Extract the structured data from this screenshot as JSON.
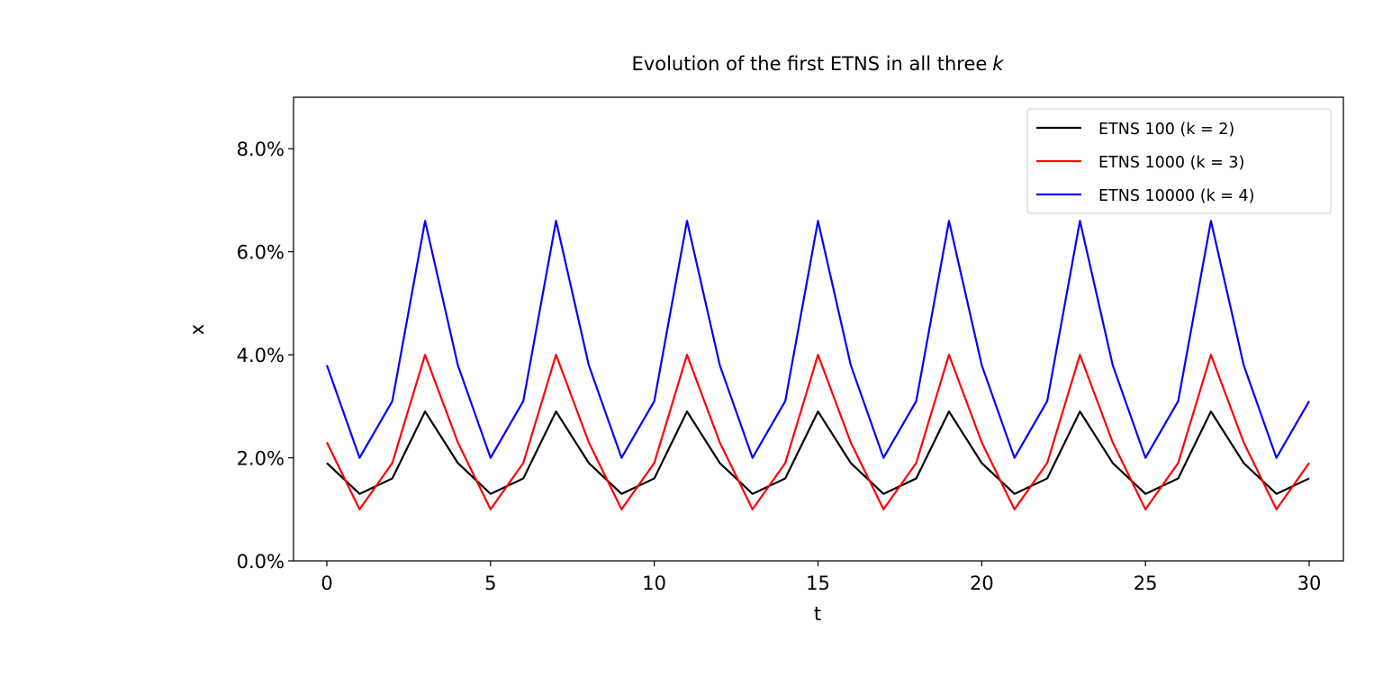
{
  "chart_data": {
    "type": "line",
    "title": "Evolution of the first ETNS in all three",
    "title_italic_suffix": "k",
    "xlabel": "t",
    "ylabel": "x",
    "xlim": [
      -1,
      31
    ],
    "ylim": [
      0,
      0.09
    ],
    "xticks": [
      0,
      5,
      10,
      15,
      20,
      25,
      30
    ],
    "xtick_labels": [
      "0",
      "5",
      "10",
      "15",
      "20",
      "25",
      "30"
    ],
    "yticks": [
      0,
      0.02,
      0.04,
      0.06,
      0.08
    ],
    "ytick_labels": [
      "0.0%",
      "2.0%",
      "4.0%",
      "6.0%",
      "8.0%"
    ],
    "grid": false,
    "legend_position": "top-right",
    "x": [
      0,
      1,
      2,
      3,
      4,
      5,
      6,
      7,
      8,
      9,
      10,
      11,
      12,
      13,
      14,
      15,
      16,
      17,
      18,
      19,
      20,
      21,
      22,
      23,
      24,
      25,
      26,
      27,
      28,
      29,
      30
    ],
    "series": [
      {
        "name": "ETNS 100 (k = 2)",
        "color": "#000000",
        "values": [
          0.019,
          0.013,
          0.016,
          0.029,
          0.019,
          0.013,
          0.016,
          0.029,
          0.019,
          0.013,
          0.016,
          0.029,
          0.019,
          0.013,
          0.016,
          0.029,
          0.019,
          0.013,
          0.016,
          0.029,
          0.019,
          0.013,
          0.016,
          0.029,
          0.019,
          0.013,
          0.016,
          0.029,
          0.019,
          0.013,
          0.016
        ]
      },
      {
        "name": "ETNS 1000 (k = 3)",
        "color": "#ff0000",
        "values": [
          0.023,
          0.01,
          0.019,
          0.04,
          0.023,
          0.01,
          0.019,
          0.04,
          0.023,
          0.01,
          0.019,
          0.04,
          0.023,
          0.01,
          0.019,
          0.04,
          0.023,
          0.01,
          0.019,
          0.04,
          0.023,
          0.01,
          0.019,
          0.04,
          0.023,
          0.01,
          0.019,
          0.04,
          0.023,
          0.01,
          0.019
        ]
      },
      {
        "name": "ETNS 10000 (k = 4)",
        "color": "#0000ff",
        "values": [
          0.038,
          0.02,
          0.031,
          0.066,
          0.038,
          0.02,
          0.031,
          0.066,
          0.038,
          0.02,
          0.031,
          0.066,
          0.038,
          0.02,
          0.031,
          0.066,
          0.038,
          0.02,
          0.031,
          0.066,
          0.038,
          0.02,
          0.031,
          0.066,
          0.038,
          0.02,
          0.031,
          0.066,
          0.038,
          0.02,
          0.031
        ]
      }
    ]
  }
}
